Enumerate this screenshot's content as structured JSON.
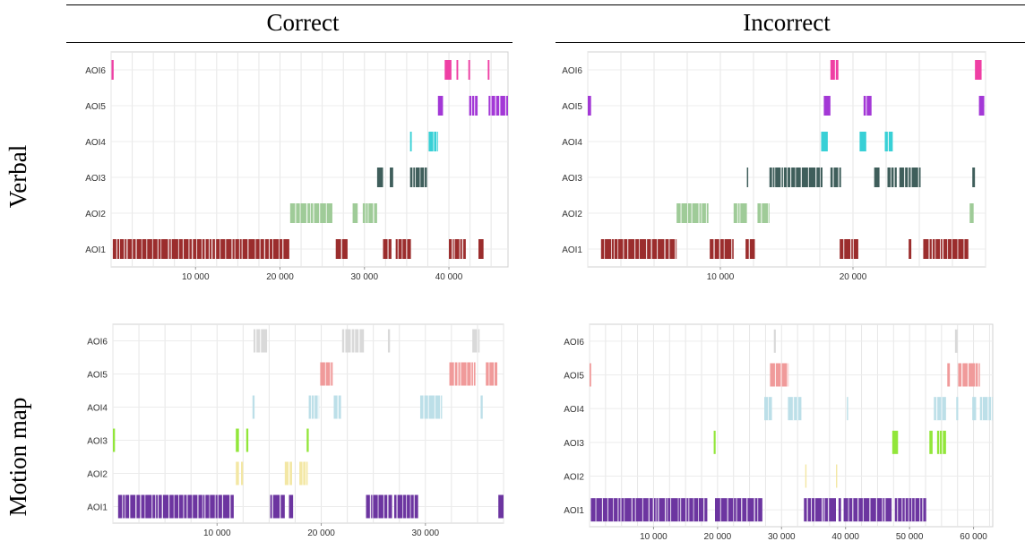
{
  "column_headers": [
    "Correct",
    "Incorrect"
  ],
  "row_headers": [
    "Verbal",
    "Motion map"
  ],
  "chart_data": [
    {
      "type": "timeline",
      "categories": [
        "AOI1",
        "AOI2",
        "AOI3",
        "AOI4",
        "AOI5",
        "AOI6"
      ],
      "xlim": [
        0,
        47000
      ],
      "xticks": [
        10000,
        20000,
        30000,
        40000
      ],
      "xtick_labels": [
        "10 000",
        "20 000",
        "30 000",
        "40 000"
      ],
      "colors": {
        "AOI1": "#9b2d2d",
        "AOI2": "#9fcb98",
        "AOI3": "#3f5e5b",
        "AOI4": "#38d0d6",
        "AOI5": "#a338d6",
        "AOI6": "#ef3fa4"
      },
      "series": [
        {
          "name": "AOI1",
          "intervals": [
            [
              200,
              21100
            ],
            [
              26600,
              28000
            ],
            [
              32200,
              33200
            ],
            [
              33700,
              35500
            ],
            [
              40000,
              42000
            ],
            [
              43500,
              44100
            ]
          ]
        },
        {
          "name": "AOI2",
          "intervals": [
            [
              21200,
              26200
            ],
            [
              28600,
              29200
            ],
            [
              29800,
              31500
            ]
          ]
        },
        {
          "name": "AOI3",
          "intervals": [
            [
              31500,
              32200
            ],
            [
              33000,
              33400
            ],
            [
              35400,
              37400
            ]
          ]
        },
        {
          "name": "AOI4",
          "intervals": [
            [
              35400,
              35600
            ],
            [
              37600,
              38700
            ]
          ]
        },
        {
          "name": "AOI5",
          "intervals": [
            [
              38700,
              39300
            ],
            [
              42400,
              43400
            ],
            [
              44700,
              47000
            ]
          ]
        },
        {
          "name": "AOI6",
          "intervals": [
            [
              50,
              300
            ],
            [
              39500,
              40300
            ],
            [
              40900,
              41100
            ],
            [
              42300,
              42500
            ],
            [
              44600,
              44800
            ]
          ]
        }
      ]
    },
    {
      "type": "timeline",
      "categories": [
        "AOI1",
        "AOI2",
        "AOI3",
        "AOI4",
        "AOI5",
        "AOI6"
      ],
      "xlim": [
        0,
        30000
      ],
      "xticks": [
        10000,
        20000
      ],
      "xtick_labels": [
        "10 000",
        "20 000"
      ],
      "colors": {
        "AOI1": "#9b2d2d",
        "AOI2": "#9fcb98",
        "AOI3": "#3f5e5b",
        "AOI4": "#38d0d6",
        "AOI5": "#a338d6",
        "AOI6": "#ef3fa4"
      },
      "series": [
        {
          "name": "AOI1",
          "intervals": [
            [
              1000,
              6700
            ],
            [
              9200,
              11000
            ],
            [
              11900,
              12600
            ],
            [
              19000,
              20400
            ],
            [
              24200,
              24400
            ],
            [
              25300,
              28700
            ]
          ]
        },
        {
          "name": "AOI2",
          "intervals": [
            [
              6700,
              9100
            ],
            [
              11000,
              12000
            ],
            [
              12800,
              13700
            ],
            [
              28800,
              29100
            ]
          ]
        },
        {
          "name": "AOI3",
          "intervals": [
            [
              12000,
              12100
            ],
            [
              13700,
              17700
            ],
            [
              18300,
              19100
            ],
            [
              21600,
              22000
            ],
            [
              22600,
              23300
            ],
            [
              23500,
              25100
            ],
            [
              29000,
              29200
            ]
          ]
        },
        {
          "name": "AOI4",
          "intervals": [
            [
              17600,
              18100
            ],
            [
              20500,
              21000
            ],
            [
              22400,
              23000
            ]
          ]
        },
        {
          "name": "AOI5",
          "intervals": [
            [
              0,
              250
            ],
            [
              17800,
              18300
            ],
            [
              20800,
              21400
            ],
            [
              29500,
              29900
            ]
          ]
        },
        {
          "name": "AOI6",
          "intervals": [
            [
              18300,
              18900
            ],
            [
              29200,
              29700
            ]
          ]
        }
      ]
    },
    {
      "type": "timeline",
      "categories": [
        "AOI1",
        "AOI2",
        "AOI3",
        "AOI4",
        "AOI5",
        "AOI6"
      ],
      "xlim": [
        0,
        37500
      ],
      "xticks": [
        10000,
        20000,
        30000
      ],
      "xtick_labels": [
        "10 000",
        "20 000",
        "30 000"
      ],
      "colors": {
        "AOI1": "#6c35a0",
        "AOI2": "#f3e7a4",
        "AOI3": "#92e63a",
        "AOI4": "#bcdfe8",
        "AOI5": "#f09a9a",
        "AOI6": "#d9d9d9"
      },
      "series": [
        {
          "name": "AOI1",
          "intervals": [
            [
              500,
              11600
            ],
            [
              15100,
              16500
            ],
            [
              16900,
              17300
            ],
            [
              24300,
              26800
            ],
            [
              27000,
              29300
            ],
            [
              37000,
              37500
            ]
          ]
        },
        {
          "name": "AOI2",
          "intervals": [
            [
              11800,
              12100
            ],
            [
              12300,
              12500
            ],
            [
              16500,
              17200
            ],
            [
              17900,
              18700
            ]
          ]
        },
        {
          "name": "AOI3",
          "intervals": [
            [
              0,
              200
            ],
            [
              11800,
              12100
            ],
            [
              12800,
              13000
            ],
            [
              18600,
              18800
            ]
          ]
        },
        {
          "name": "AOI4",
          "intervals": [
            [
              13400,
              13600
            ],
            [
              18800,
              19800
            ],
            [
              21200,
              21900
            ],
            [
              29500,
              31600
            ],
            [
              35300,
              35500
            ]
          ]
        },
        {
          "name": "AOI5",
          "intervals": [
            [
              19900,
              21100
            ],
            [
              32300,
              34800
            ],
            [
              35800,
              36900
            ]
          ]
        },
        {
          "name": "AOI6",
          "intervals": [
            [
              13500,
              14800
            ],
            [
              22000,
              24100
            ],
            [
              26400,
              26600
            ],
            [
              34500,
              35200
            ]
          ]
        }
      ]
    },
    {
      "type": "timeline",
      "categories": [
        "AOI1",
        "AOI2",
        "AOI3",
        "AOI4",
        "AOI5",
        "AOI6"
      ],
      "xlim": [
        0,
        63000
      ],
      "xticks": [
        10000,
        20000,
        30000,
        40000,
        50000,
        60000
      ],
      "xtick_labels": [
        "10 000",
        "20 000",
        "30 000",
        "40 000",
        "50 000",
        "60 000"
      ],
      "colors": {
        "AOI1": "#6c35a0",
        "AOI2": "#f3e7a4",
        "AOI3": "#92e63a",
        "AOI4": "#bcdfe8",
        "AOI5": "#f09a9a",
        "AOI6": "#d9d9d9"
      },
      "series": [
        {
          "name": "AOI1",
          "intervals": [
            [
              200,
              18400
            ],
            [
              19600,
              27000
            ],
            [
              33500,
              38500
            ],
            [
              38900,
              39300
            ],
            [
              39700,
              47200
            ],
            [
              47700,
              52600
            ]
          ]
        },
        {
          "name": "AOI2",
          "intervals": [
            [
              33700,
              33900
            ],
            [
              38500,
              38700
            ]
          ]
        },
        {
          "name": "AOI3",
          "intervals": [
            [
              19400,
              19700
            ],
            [
              47300,
              48200
            ],
            [
              53100,
              53600
            ],
            [
              54300,
              55700
            ]
          ]
        },
        {
          "name": "AOI4",
          "intervals": [
            [
              27300,
              28500
            ],
            [
              31000,
              33100
            ],
            [
              40200,
              40400
            ],
            [
              53800,
              55700
            ],
            [
              57300,
              57600
            ],
            [
              59800,
              60400
            ],
            [
              61000,
              63000
            ]
          ]
        },
        {
          "name": "AOI5",
          "intervals": [
            [
              0,
              250
            ],
            [
              28200,
              31100
            ],
            [
              55900,
              56300
            ],
            [
              57600,
              61000
            ]
          ]
        },
        {
          "name": "AOI6",
          "intervals": [
            [
              28800,
              29100
            ],
            [
              57100,
              57500
            ]
          ]
        }
      ]
    }
  ]
}
